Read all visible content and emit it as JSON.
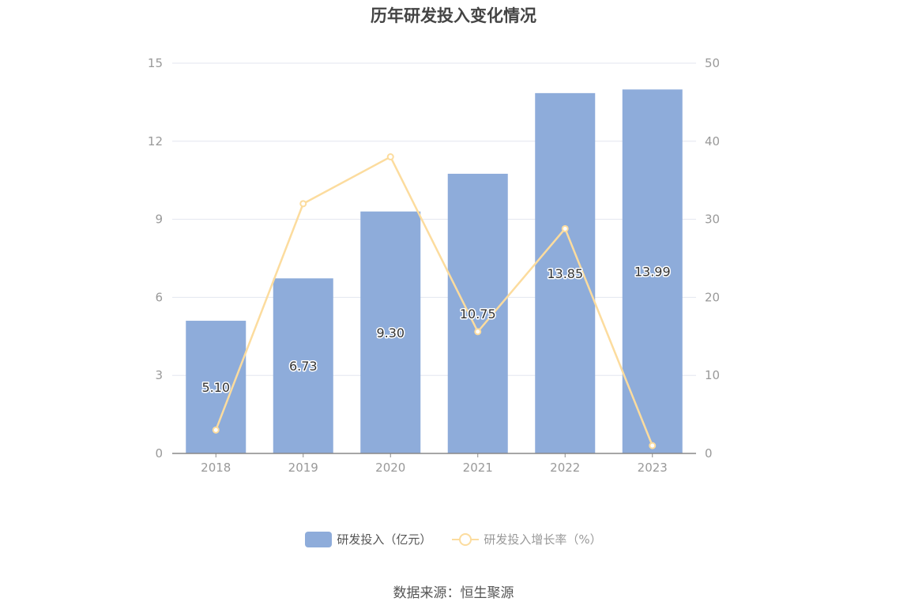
{
  "title": "历年研发投入变化情况",
  "source": "数据来源：恒生聚源",
  "colors": {
    "bar": "#8eacda",
    "line": "#fcdc9e",
    "axis": "#888888",
    "grid": "#e3e6ef",
    "label": "#999999"
  },
  "legend": {
    "bar_label": "研发投入（亿元）",
    "line_label": "研发投入增长率（%）"
  },
  "chart_data": {
    "type": "bar",
    "categories": [
      "2018",
      "2019",
      "2020",
      "2021",
      "2022",
      "2023"
    ],
    "series": [
      {
        "name": "研发投入（亿元）",
        "type": "bar",
        "axis": "left",
        "values": [
          5.1,
          6.73,
          9.3,
          10.75,
          13.85,
          13.99
        ],
        "labels": [
          "5.10",
          "6.73",
          "9.30",
          "10.75",
          "13.85",
          "13.99"
        ]
      },
      {
        "name": "研发投入增长率（%）",
        "type": "line",
        "axis": "right",
        "values": [
          3.0,
          32.0,
          38.0,
          15.6,
          28.8,
          1.0
        ]
      }
    ],
    "y_left": {
      "min": 0,
      "max": 15,
      "ticks": [
        "0",
        "3",
        "6",
        "9",
        "12",
        "15"
      ]
    },
    "y_right": {
      "min": 0,
      "max": 50,
      "ticks": [
        "0",
        "10",
        "20",
        "30",
        "40",
        "50"
      ]
    },
    "grid": true,
    "legend_position": "bottom"
  }
}
